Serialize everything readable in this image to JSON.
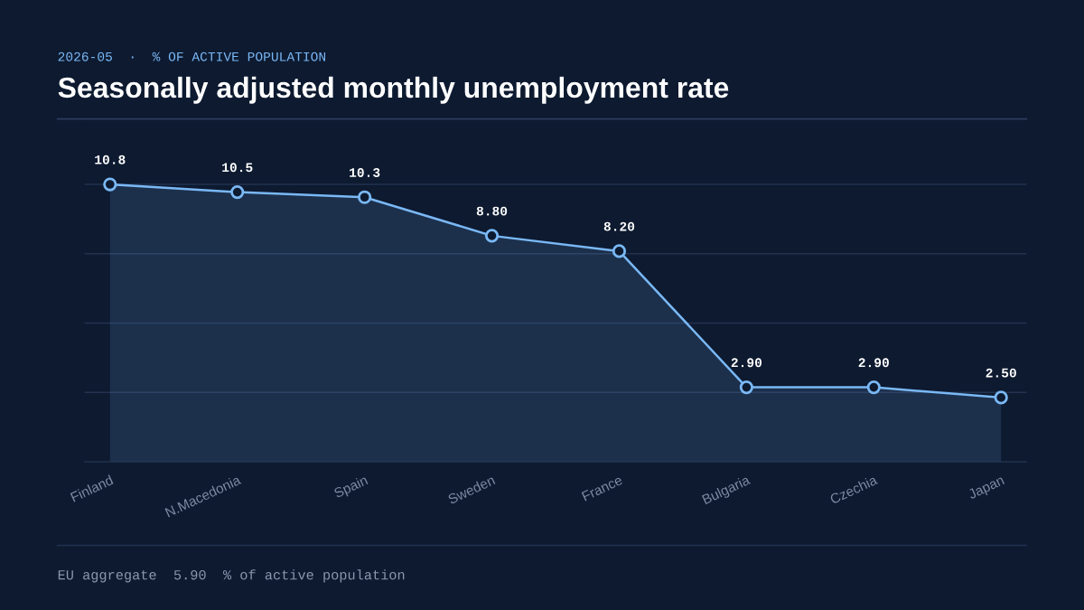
{
  "chart_data": {
    "type": "area",
    "title": "Seasonally adjusted monthly unemployment rate",
    "subtitle": "2026-05  ·  % OF ACTIVE POPULATION",
    "categories": [
      "Finland",
      "N.Macedonia",
      "Spain",
      "Sweden",
      "France",
      "Bulgaria",
      "Czechia",
      "Japan"
    ],
    "series": [
      {
        "color": "#7ab8f5",
        "values": [
          10.8,
          10.5,
          10.3,
          8.8,
          8.2,
          2.9,
          2.9,
          2.5
        ],
        "value_labels": [
          "10.8",
          "10.5",
          "10.3",
          "8.80",
          "8.20",
          "2.90",
          "2.90",
          "2.50"
        ]
      }
    ],
    "ylim": [
      0,
      13.3
    ],
    "yticks": [
      {
        "value": 2.7,
        "label": null
      },
      {
        "value": 5.4,
        "label": null
      },
      {
        "value": 8.1,
        "label": null
      },
      {
        "value": 10.8,
        "label": null
      }
    ],
    "grid": "y",
    "marker": "circle",
    "line_style": "solid",
    "tick_labels": "x",
    "annotations": [
      "EU aggregate  5.90  % of active population"
    ]
  }
}
